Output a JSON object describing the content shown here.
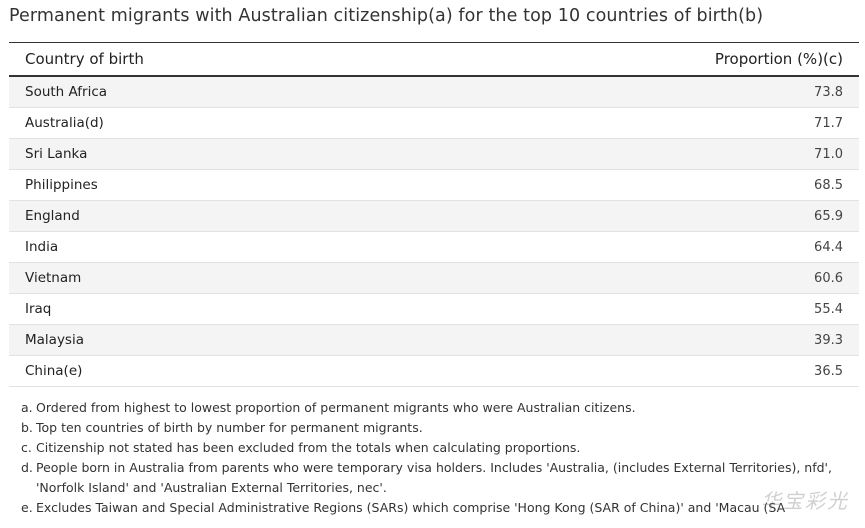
{
  "title": "Permanent migrants with Australian citizenship(a) for the top 10 countries of birth(b)",
  "table": {
    "headers": {
      "country": "Country of birth",
      "proportion": "Proportion (%)(c)"
    },
    "rows": [
      {
        "country": "South Africa",
        "value": "73.8"
      },
      {
        "country": "Australia(d)",
        "value": "71.7"
      },
      {
        "country": "Sri Lanka",
        "value": "71.0"
      },
      {
        "country": "Philippines",
        "value": "68.5"
      },
      {
        "country": "England",
        "value": "65.9"
      },
      {
        "country": "India",
        "value": "64.4"
      },
      {
        "country": "Vietnam",
        "value": "60.6"
      },
      {
        "country": "Iraq",
        "value": "55.4"
      },
      {
        "country": "Malaysia",
        "value": "39.3"
      },
      {
        "country": "China(e)",
        "value": "36.5"
      }
    ]
  },
  "notes": [
    {
      "letter": "a.",
      "text": "Ordered from highest to lowest proportion of permanent migrants who were Australian citizens."
    },
    {
      "letter": "b.",
      "text": "Top ten countries of birth by number for permanent migrants."
    },
    {
      "letter": "c.",
      "text": "Citizenship not stated has been excluded from the totals when calculating proportions."
    },
    {
      "letter": "d.",
      "text": "People born in Australia from parents who were temporary visa holders. Includes 'Australia, (includes External Territories), nfd', 'Norfolk Island' and 'Australian External Territories, nec'."
    },
    {
      "letter": "e.",
      "text": "Excludes Taiwan and Special Administrative Regions (SARs) which comprise 'Hong Kong (SAR of China)' and 'Macau (SA"
    }
  ],
  "watermark": "华宝彩光"
}
